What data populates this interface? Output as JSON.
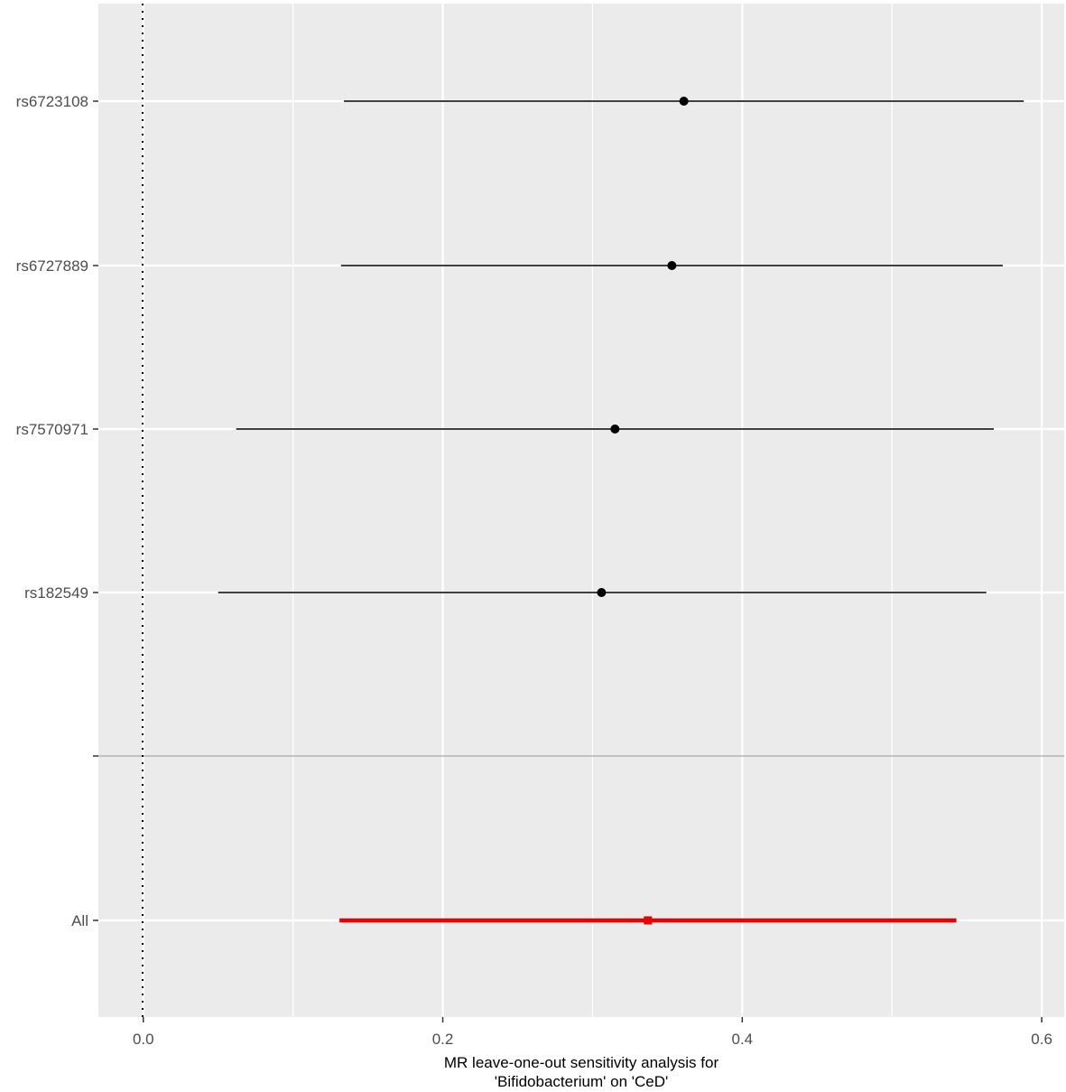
{
  "chart_data": {
    "type": "forest",
    "title": "",
    "xlabel_lines": [
      "MR leave-one-out sensitivity analysis for",
      "'Bifidobacterium' on 'CeD'"
    ],
    "ylabel": "",
    "xlim": [
      -0.03,
      0.615
    ],
    "x_ticks": [
      0.0,
      0.2,
      0.4,
      0.6
    ],
    "x_tick_labels": [
      "0.0",
      "0.2",
      "0.4",
      "0.6"
    ],
    "reference_line_x": 0,
    "grid": true,
    "rows": [
      {
        "label": "rs6723108",
        "estimate": 0.361,
        "lower": 0.134,
        "upper": 0.588,
        "color": "#000000",
        "summary": false
      },
      {
        "label": "rs6727889",
        "estimate": 0.353,
        "lower": 0.132,
        "upper": 0.574,
        "color": "#000000",
        "summary": false
      },
      {
        "label": "rs7570971",
        "estimate": 0.315,
        "lower": 0.062,
        "upper": 0.568,
        "color": "#000000",
        "summary": false
      },
      {
        "label": "rs182549",
        "estimate": 0.306,
        "lower": 0.05,
        "upper": 0.563,
        "color": "#000000",
        "summary": false
      },
      {
        "label": "All",
        "estimate": 0.337,
        "lower": 0.131,
        "upper": 0.543,
        "color": "#e80000",
        "summary": true
      }
    ]
  }
}
